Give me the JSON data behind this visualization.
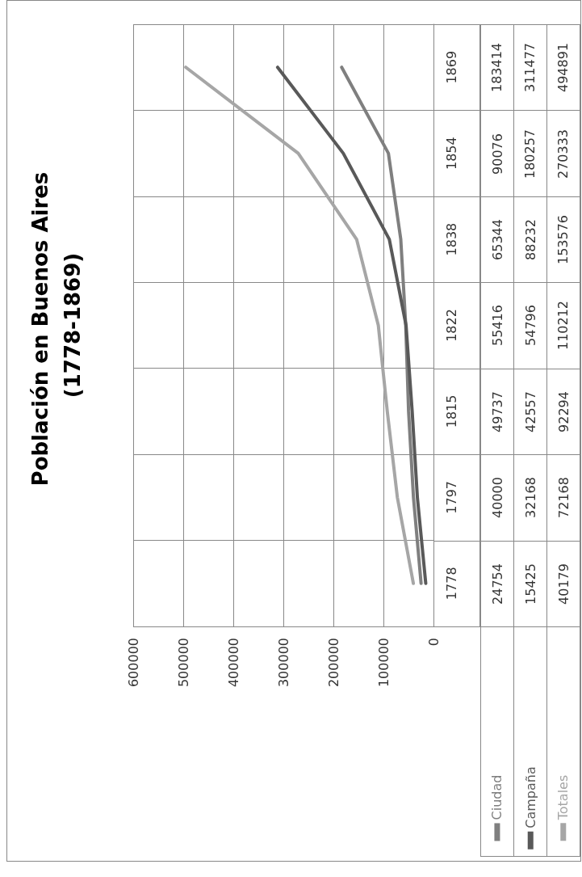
{
  "chart_data": {
    "type": "line",
    "orientation": "horizontal",
    "title": "Población en Buenos Aires (1778-1869)",
    "categories": [
      "1869",
      "1854",
      "1838",
      "1822",
      "1815",
      "1797",
      "1778"
    ],
    "series": [
      {
        "name": "Ciudad",
        "color": "#7f7f7f",
        "values": [
          183414,
          90076,
          65344,
          55416,
          49737,
          40000,
          24754
        ]
      },
      {
        "name": "Campaña",
        "color": "#595959",
        "values": [
          311477,
          180257,
          88232,
          54796,
          42557,
          32168,
          15425
        ]
      },
      {
        "name": "Totales",
        "color": "#a6a6a6",
        "values": [
          494891,
          270333,
          153576,
          110212,
          92294,
          72168,
          40179
        ]
      }
    ],
    "xlim": [
      600000,
      0
    ],
    "xticks": [
      600000,
      500000,
      400000,
      300000,
      200000,
      100000,
      0
    ],
    "grid": true,
    "legend": "bottom",
    "data_labels": true,
    "marker": "none"
  }
}
